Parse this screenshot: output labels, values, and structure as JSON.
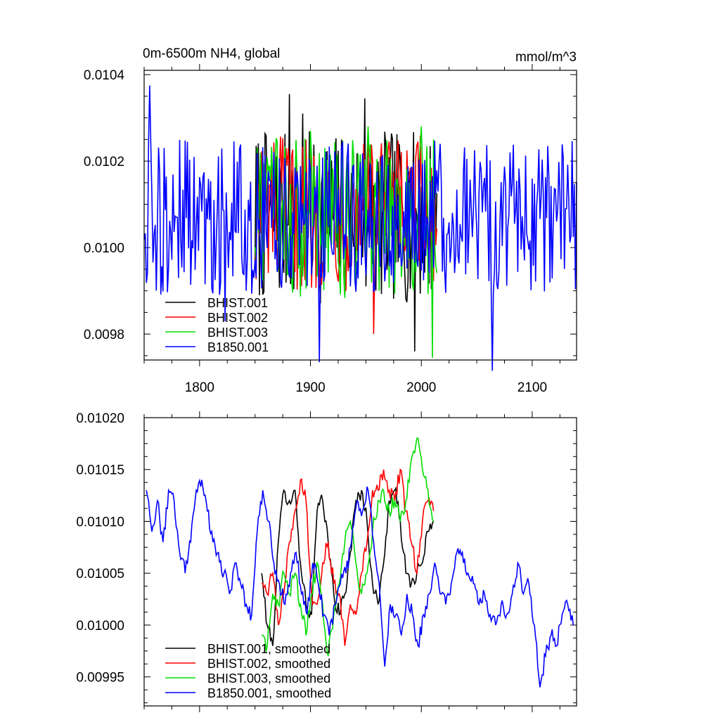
{
  "chart_data": [
    {
      "type": "line",
      "title": "0m-6500m NH4, global",
      "units": "mmol/m^3",
      "xlabel": "",
      "ylabel": "",
      "xlim": [
        1750,
        2140
      ],
      "ylim": [
        0.00974,
        0.01041
      ],
      "x_ticks": [
        1800,
        1900,
        2000,
        2100
      ],
      "x_tick_labels": [
        "1800",
        "1900",
        "2000",
        "2100"
      ],
      "y_ticks": [
        0.0098,
        0.01,
        0.0102,
        0.0104
      ],
      "y_tick_labels": [
        "0.0098",
        "0.0100",
        "0.0102",
        "0.0104"
      ],
      "grid": false,
      "legend_position": "bottom-left",
      "series": [
        {
          "name": "BHIST.001",
          "color": "#000000",
          "x_start": 1850,
          "x_end": 2014,
          "mean": 0.01007,
          "amplitude": 0.0002,
          "peaks": [
            [
              1881,
              0.010355
            ],
            [
              1893,
              0.01031
            ],
            [
              1949,
              0.010345
            ],
            [
              1994,
              0.00976
            ]
          ]
        },
        {
          "name": "BHIST.002",
          "color": "#ff0000",
          "x_start": 1850,
          "x_end": 2014,
          "mean": 0.01008,
          "amplitude": 0.00018,
          "peaks": [
            [
              1880,
              0.01023
            ],
            [
              1948,
              0.01024
            ],
            [
              1957,
              0.0098
            ]
          ]
        },
        {
          "name": "BHIST.003",
          "color": "#00dd00",
          "x_start": 1850,
          "x_end": 2014,
          "mean": 0.01007,
          "amplitude": 0.00019,
          "peaks": [
            [
              1900,
              0.01027
            ],
            [
              1952,
              0.01028
            ],
            [
              2000,
              0.01028
            ],
            [
              2010,
              0.009745
            ]
          ]
        },
        {
          "name": "B1850.001",
          "color": "#0000ff",
          "x_start": 1750,
          "x_end": 2140,
          "mean": 0.01007,
          "amplitude": 0.00018,
          "peaks": [
            [
              1755,
              0.010375
            ],
            [
              1823,
              0.00983
            ],
            [
              1908,
              0.009735
            ],
            [
              2064,
              0.009715
            ]
          ]
        }
      ]
    },
    {
      "type": "line",
      "title": "",
      "xlabel": "",
      "ylabel": "",
      "xlim": [
        1750,
        2140
      ],
      "ylim": [
        0.009922,
        0.0102
      ],
      "x_ticks": [
        1800,
        1900,
        2000,
        2100
      ],
      "x_tick_labels": [
        "",
        "",
        "",
        ""
      ],
      "y_ticks": [
        0.00995,
        0.01,
        0.01005,
        0.0101,
        0.01015,
        0.0102
      ],
      "y_tick_labels": [
        "0.00995",
        "0.01000",
        "0.01005",
        "0.01010",
        "0.01015",
        "0.01020"
      ],
      "grid": false,
      "legend_position": "bottom-left",
      "series": [
        {
          "name": "BHIST.001, smoothed",
          "color": "#000000",
          "x": [
            1856,
            1861,
            1866,
            1871,
            1876,
            1881,
            1886,
            1891,
            1896,
            1901,
            1906,
            1911,
            1916,
            1921,
            1926,
            1931,
            1936,
            1941,
            1946,
            1951,
            1956,
            1961,
            1966,
            1971,
            1976,
            1981,
            1986,
            1991,
            1996,
            2001,
            2006,
            2011
          ],
          "y": [
            0.01005,
            0.01,
            0.00998,
            0.01008,
            0.01013,
            0.01012,
            0.01013,
            0.01006,
            0.01002,
            0.01001,
            0.01011,
            0.01012,
            0.01008,
            0.01003,
            0.01001,
            0.01003,
            0.01007,
            0.01012,
            0.01013,
            0.0101,
            0.01004,
            0.01002,
            0.01006,
            0.01012,
            0.01013,
            0.0101,
            0.01005,
            0.01004,
            0.01005,
            0.01006,
            0.01009,
            0.0101
          ]
        },
        {
          "name": "BHIST.002, smoothed",
          "color": "#ff0000",
          "x": [
            1856,
            1861,
            1866,
            1871,
            1876,
            1881,
            1886,
            1891,
            1896,
            1901,
            1906,
            1911,
            1916,
            1921,
            1926,
            1931,
            1936,
            1941,
            1946,
            1951,
            1956,
            1961,
            1966,
            1971,
            1976,
            1981,
            1986,
            1991,
            1996,
            2001,
            2006,
            2011
          ],
          "y": [
            0.01004,
            0.01003,
            0.01005,
            0.01,
            0.01003,
            0.01008,
            0.01011,
            0.01014,
            0.01012,
            0.01003,
            0.01002,
            0.01006,
            0.01008,
            0.01004,
            0.01003,
            0.00998,
            0.01002,
            0.01001,
            0.01005,
            0.01008,
            0.01013,
            0.01013,
            0.01015,
            0.01013,
            0.01012,
            0.01015,
            0.01011,
            0.01008,
            0.01005,
            0.0101,
            0.01012,
            0.01011
          ]
        },
        {
          "name": "BHIST.003, smoothed",
          "color": "#00dd00",
          "x": [
            1856,
            1861,
            1866,
            1871,
            1876,
            1881,
            1886,
            1891,
            1896,
            1901,
            1906,
            1911,
            1916,
            1921,
            1926,
            1931,
            1936,
            1941,
            1946,
            1951,
            1956,
            1961,
            1966,
            1971,
            1976,
            1981,
            1986,
            1991,
            1996,
            2001,
            2006,
            2011
          ],
          "y": [
            0.00999,
            0.00998,
            0.01003,
            0.01002,
            0.01005,
            0.01003,
            0.01005,
            0.01002,
            0.00999,
            0.01003,
            0.01006,
            0.01002,
            0.00997,
            0.01001,
            0.01004,
            0.01008,
            0.0101,
            0.01006,
            0.01003,
            0.01005,
            0.01009,
            0.01012,
            0.01013,
            0.01011,
            0.01012,
            0.0101,
            0.01012,
            0.01016,
            0.01018,
            0.01015,
            0.01013,
            0.0101
          ]
        },
        {
          "name": "B1850.001, smoothed",
          "color": "#0000ff",
          "x": [
            1752,
            1757,
            1762,
            1767,
            1772,
            1777,
            1782,
            1787,
            1792,
            1797,
            1802,
            1807,
            1812,
            1817,
            1822,
            1827,
            1832,
            1837,
            1842,
            1847,
            1852,
            1857,
            1862,
            1867,
            1872,
            1877,
            1882,
            1887,
            1892,
            1897,
            1902,
            1907,
            1912,
            1917,
            1922,
            1927,
            1932,
            1937,
            1942,
            1947,
            1952,
            1957,
            1962,
            1967,
            1972,
            1977,
            1982,
            1987,
            1992,
            1997,
            2002,
            2007,
            2012,
            2017,
            2022,
            2027,
            2032,
            2037,
            2042,
            2047,
            2052,
            2057,
            2062,
            2067,
            2072,
            2077,
            2082,
            2087,
            2092,
            2097,
            2102,
            2107,
            2112,
            2117,
            2122,
            2127,
            2132,
            2137
          ],
          "y": [
            0.01013,
            0.01009,
            0.01012,
            0.01008,
            0.01013,
            0.01012,
            0.01007,
            0.01005,
            0.01008,
            0.01013,
            0.01014,
            0.01011,
            0.01008,
            0.01007,
            0.01005,
            0.01003,
            0.01006,
            0.01004,
            0.01002,
            0.01001,
            0.01009,
            0.01013,
            0.0101,
            0.01006,
            0.01004,
            0.01002,
            0.01005,
            0.01007,
            0.01003,
            0.01001,
            0.01006,
            0.01004,
            0.01001,
            0.00999,
            0.01002,
            0.01004,
            0.01005,
            0.01008,
            0.01012,
            0.01011,
            0.01013,
            0.01008,
            0.01004,
            0.00996,
            0.01002,
            0.01001,
            0.00999,
            0.01003,
            0.01001,
            0.00998,
            0.01001,
            0.01003,
            0.01006,
            0.01003,
            0.01002,
            0.01004,
            0.01007,
            0.01007,
            0.01005,
            0.01004,
            0.01002,
            0.01003,
            0.01001,
            0.01,
            0.01002,
            0.01001,
            0.01003,
            0.01006,
            0.01003,
            0.01004,
            0.01,
            0.00994,
            0.00997,
            0.00999,
            0.00998,
            0.01001,
            0.01002,
            0.01
          ]
        }
      ]
    }
  ]
}
